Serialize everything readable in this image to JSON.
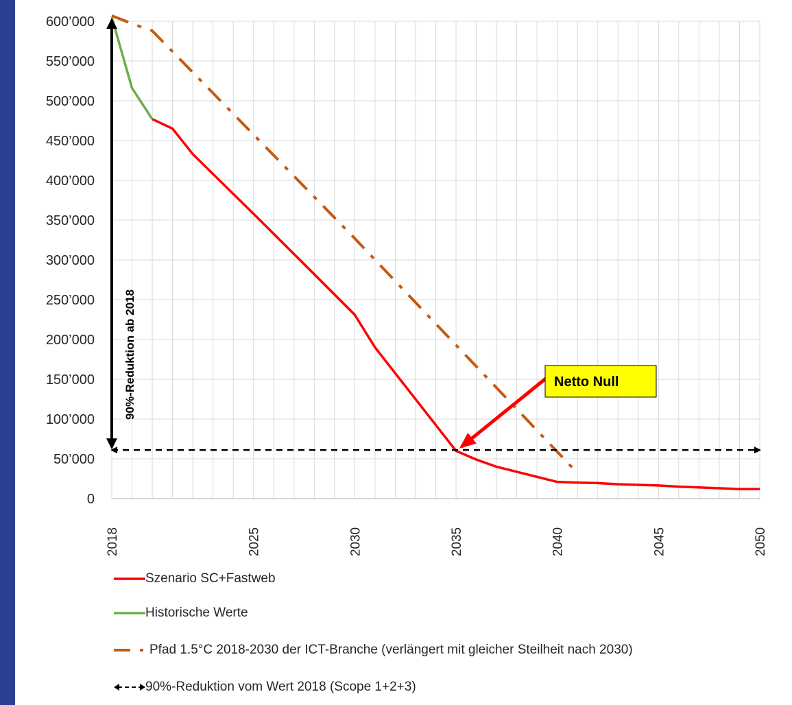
{
  "chart_data": {
    "type": "line",
    "x_ticks": [
      "2018",
      "2025",
      "2030",
      "2035",
      "2040",
      "2045",
      "2050"
    ],
    "y_ticks": [
      "0",
      "50’000",
      "100’000",
      "150’000",
      "200’000",
      "250’000",
      "300’000",
      "350’000",
      "400’000",
      "450’000",
      "500’000",
      "550’000",
      "600’000"
    ],
    "xlim": [
      2018,
      2050
    ],
    "ylim": [
      0,
      600000
    ],
    "grid": true,
    "legend_position": "bottom",
    "series": [
      {
        "name": "Szenario SC+Fastweb",
        "color": "#ff0000",
        "style": "solid",
        "points": [
          [
            2020,
            477000
          ],
          [
            2021,
            465000
          ],
          [
            2022,
            433000
          ],
          [
            2025,
            358000
          ],
          [
            2028,
            282000
          ],
          [
            2030,
            231000
          ],
          [
            2031,
            190000
          ],
          [
            2035,
            60000
          ],
          [
            2036,
            49000
          ],
          [
            2037,
            40000
          ],
          [
            2040,
            21000
          ],
          [
            2041,
            20000
          ],
          [
            2042,
            19500
          ],
          [
            2043,
            18000
          ],
          [
            2045,
            16500
          ],
          [
            2046,
            15000
          ],
          [
            2049,
            12000
          ],
          [
            2050,
            12000
          ]
        ]
      },
      {
        "name": "Historische Werte",
        "color": "#70ad47",
        "style": "solid",
        "points": [
          [
            2018,
            605000
          ],
          [
            2019,
            516000
          ],
          [
            2020,
            477000
          ]
        ]
      },
      {
        "name": "Pfad 1.5°C 2018-2030 der ICT-Branche (verlängert mit gleicher Steilheit nach 2030)",
        "color": "#c55a11",
        "style": "dash-dot",
        "points": [
          [
            2018,
            607000
          ],
          [
            2019,
            597000
          ],
          [
            2020,
            588000
          ],
          [
            2030,
            327000
          ],
          [
            2041,
            32000
          ]
        ]
      },
      {
        "name": "90%-Reduktion vom Wert 2018 (Scope 1+2+3)",
        "color": "#000000",
        "style": "dashed-double-arrow",
        "points": [
          [
            2018,
            61000
          ],
          [
            2050,
            61000
          ]
        ]
      }
    ],
    "annotations": {
      "vertical_arrow_label": "90%-Reduktion ab 2018",
      "callout_label": "Netto Null",
      "callout_color": "#ffff00",
      "callout_arrow_color": "#ff0000",
      "callout_target": [
        2035,
        60000
      ]
    }
  }
}
